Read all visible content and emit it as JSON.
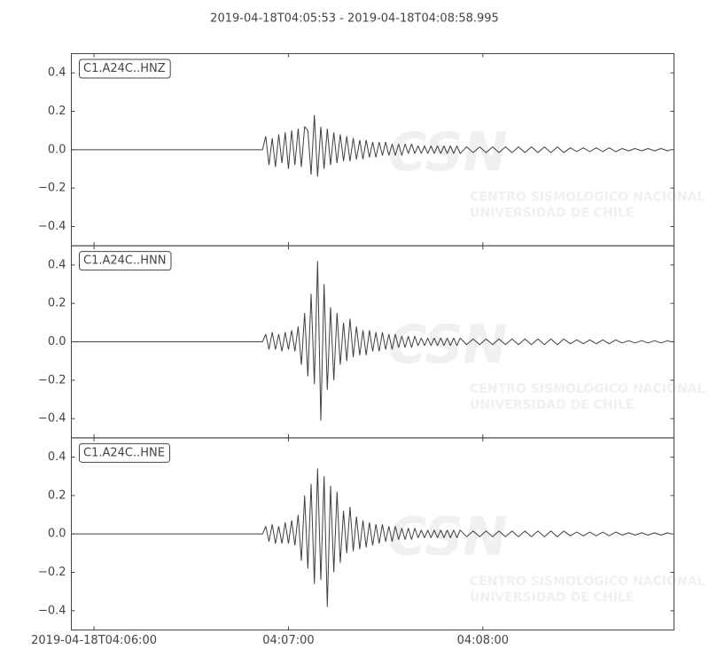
{
  "chart_data": {
    "type": "line",
    "layout": "stacked",
    "title": "2019-04-18T04:05:53  -  2019-04-18T04:08:58.995",
    "watermark": {
      "logo": "CSN",
      "lines": [
        "CENTRO SISMOLÓGICO NACIONAL",
        "UNIVERSIDAD DE CHILE"
      ]
    },
    "xlim": [
      "04:05:53",
      "04:08:58.995"
    ],
    "xticks": [
      {
        "value": "04:06:00",
        "label": "2019-04-18T04:06:00"
      },
      "04:07:00",
      "04:08:00"
    ],
    "ylim": [
      -0.5,
      0.5
    ],
    "yticks": [
      0.4,
      0.2,
      {
        "value": 0,
        "label": "0.0"
      },
      {
        "value": -0.2,
        "label": "−0.2"
      },
      {
        "value": -0.4,
        "label": "−0.4"
      }
    ],
    "x": [
      "04:05:53",
      "04:06:52",
      "04:06:53",
      "04:06:54",
      "04:06:55",
      "04:06:56",
      "04:06:57",
      "04:06:58",
      "04:06:59",
      "04:07:00",
      "04:07:01",
      "04:07:02",
      "04:07:03",
      "04:07:04",
      "04:07:05",
      "04:07:06",
      "04:07:07",
      "04:07:08",
      "04:07:09",
      "04:07:10",
      "04:07:11",
      "04:07:12",
      "04:07:13",
      "04:07:14",
      "04:07:15",
      "04:07:16",
      "04:07:17",
      "04:07:18",
      "04:07:19",
      "04:07:20",
      "04:07:21",
      "04:07:22",
      "04:07:23",
      "04:07:24",
      "04:07:25",
      "04:07:26",
      "04:07:27",
      "04:07:28",
      "04:07:29",
      "04:07:30",
      "04:07:31",
      "04:07:32",
      "04:07:33",
      "04:07:34",
      "04:07:35",
      "04:07:36",
      "04:07:37",
      "04:07:38",
      "04:07:39",
      "04:07:40",
      "04:07:41",
      "04:07:42",
      "04:07:43",
      "04:07:44",
      "04:07:45",
      "04:07:46",
      "04:07:47",
      "04:07:48",
      "04:07:49",
      "04:07:50",
      "04:07:51",
      "04:07:52",
      "04:07:53",
      "04:07:55",
      "04:07:57",
      "04:07:59",
      "04:08:01",
      "04:08:03",
      "04:08:05",
      "04:08:07",
      "04:08:09",
      "04:08:11",
      "04:08:13",
      "04:08:15",
      "04:08:17",
      "04:08:19",
      "04:08:21",
      "04:08:23",
      "04:08:25",
      "04:08:27",
      "04:08:29",
      "04:08:31",
      "04:08:33",
      "04:08:35",
      "04:08:37",
      "04:08:39",
      "04:08:41",
      "04:08:43",
      "04:08:45",
      "04:08:47",
      "04:08:49",
      "04:08:51",
      "04:08:53",
      "04:08:55",
      "04:08:57",
      "04:08:58"
    ],
    "series": [
      {
        "name": "C1.A24C..HNZ",
        "color": "#404040",
        "values": [
          0,
          0,
          0.07,
          -0.08,
          0.06,
          -0.09,
          0.08,
          -0.07,
          0.09,
          -0.1,
          0.1,
          -0.08,
          0.11,
          -0.09,
          0.12,
          0.1,
          -0.13,
          0.18,
          -0.14,
          0.12,
          -0.1,
          0.11,
          -0.08,
          0.09,
          -0.07,
          0.08,
          -0.06,
          0.07,
          -0.06,
          0.06,
          -0.05,
          0.05,
          -0.05,
          0.05,
          -0.04,
          0.04,
          -0.04,
          0.04,
          -0.03,
          0.04,
          -0.03,
          0.03,
          -0.03,
          0.03,
          -0.03,
          0.03,
          -0.02,
          0.03,
          -0.02,
          0.02,
          -0.02,
          0.02,
          -0.02,
          0.02,
          -0.02,
          0.02,
          -0.02,
          0.02,
          -0.02,
          0.02,
          -0.02,
          0.02,
          -0.02,
          0.015,
          -0.015,
          0.015,
          -0.015,
          0.015,
          -0.015,
          0.015,
          -0.015,
          0.015,
          -0.015,
          0.015,
          -0.015,
          0.015,
          -0.015,
          0.015,
          -0.015,
          0.01,
          -0.01,
          0.01,
          -0.01,
          0.01,
          -0.01,
          0.01,
          -0.01,
          0.006,
          -0.006,
          0.006,
          -0.006,
          0.006,
          -0.006,
          0.006,
          -0.006,
          0
        ]
      },
      {
        "name": "C1.A24C..HNN",
        "color": "#404040",
        "values": [
          0,
          0,
          0.04,
          -0.04,
          0.05,
          -0.04,
          0.04,
          -0.05,
          0.05,
          -0.04,
          0.06,
          -0.05,
          0.08,
          -0.12,
          0.15,
          -0.18,
          0.25,
          -0.22,
          0.42,
          -0.41,
          0.3,
          -0.25,
          0.18,
          -0.2,
          0.15,
          -0.12,
          0.1,
          -0.1,
          0.12,
          -0.08,
          0.08,
          -0.07,
          0.06,
          -0.07,
          0.06,
          -0.05,
          0.05,
          -0.05,
          0.05,
          -0.04,
          0.04,
          -0.04,
          0.04,
          -0.03,
          0.03,
          -0.03,
          0.03,
          -0.03,
          0.03,
          -0.02,
          0.02,
          -0.02,
          0.02,
          -0.02,
          0.02,
          -0.02,
          0.02,
          -0.02,
          0.02,
          -0.02,
          0.02,
          -0.02,
          0.02,
          -0.015,
          0.015,
          -0.015,
          0.015,
          -0.015,
          0.015,
          -0.015,
          0.015,
          -0.015,
          0.015,
          -0.015,
          0.015,
          -0.015,
          0.015,
          -0.015,
          0.015,
          -0.01,
          0.01,
          -0.01,
          0.01,
          -0.01,
          0.01,
          -0.01,
          0.01,
          -0.006,
          0.006,
          -0.006,
          0.006,
          -0.006,
          0.006,
          -0.006,
          0.006,
          0
        ]
      },
      {
        "name": "C1.A24C..HNE",
        "color": "#404040",
        "values": [
          0,
          0,
          0.04,
          -0.04,
          0.05,
          -0.05,
          0.04,
          -0.05,
          0.06,
          -0.05,
          0.07,
          -0.06,
          0.1,
          -0.14,
          0.2,
          -0.18,
          0.26,
          -0.26,
          0.34,
          -0.24,
          0.3,
          -0.38,
          0.25,
          -0.2,
          0.22,
          -0.15,
          0.12,
          -0.1,
          0.14,
          -0.09,
          0.09,
          -0.08,
          0.07,
          -0.07,
          0.06,
          -0.06,
          0.05,
          -0.05,
          0.05,
          -0.04,
          0.04,
          -0.04,
          0.04,
          -0.03,
          0.03,
          -0.03,
          0.03,
          -0.03,
          0.03,
          -0.02,
          0.02,
          -0.02,
          0.02,
          -0.02,
          0.02,
          -0.02,
          0.02,
          -0.02,
          0.02,
          -0.02,
          0.02,
          -0.02,
          0.02,
          -0.015,
          0.015,
          -0.015,
          0.015,
          -0.015,
          0.015,
          -0.015,
          0.015,
          -0.015,
          0.015,
          -0.015,
          0.015,
          -0.015,
          0.015,
          -0.015,
          0.015,
          -0.01,
          0.01,
          -0.01,
          0.01,
          -0.01,
          0.01,
          -0.01,
          0.01,
          -0.006,
          0.006,
          -0.006,
          0.006,
          -0.006,
          0.006,
          -0.006,
          0.006,
          0
        ]
      }
    ]
  }
}
